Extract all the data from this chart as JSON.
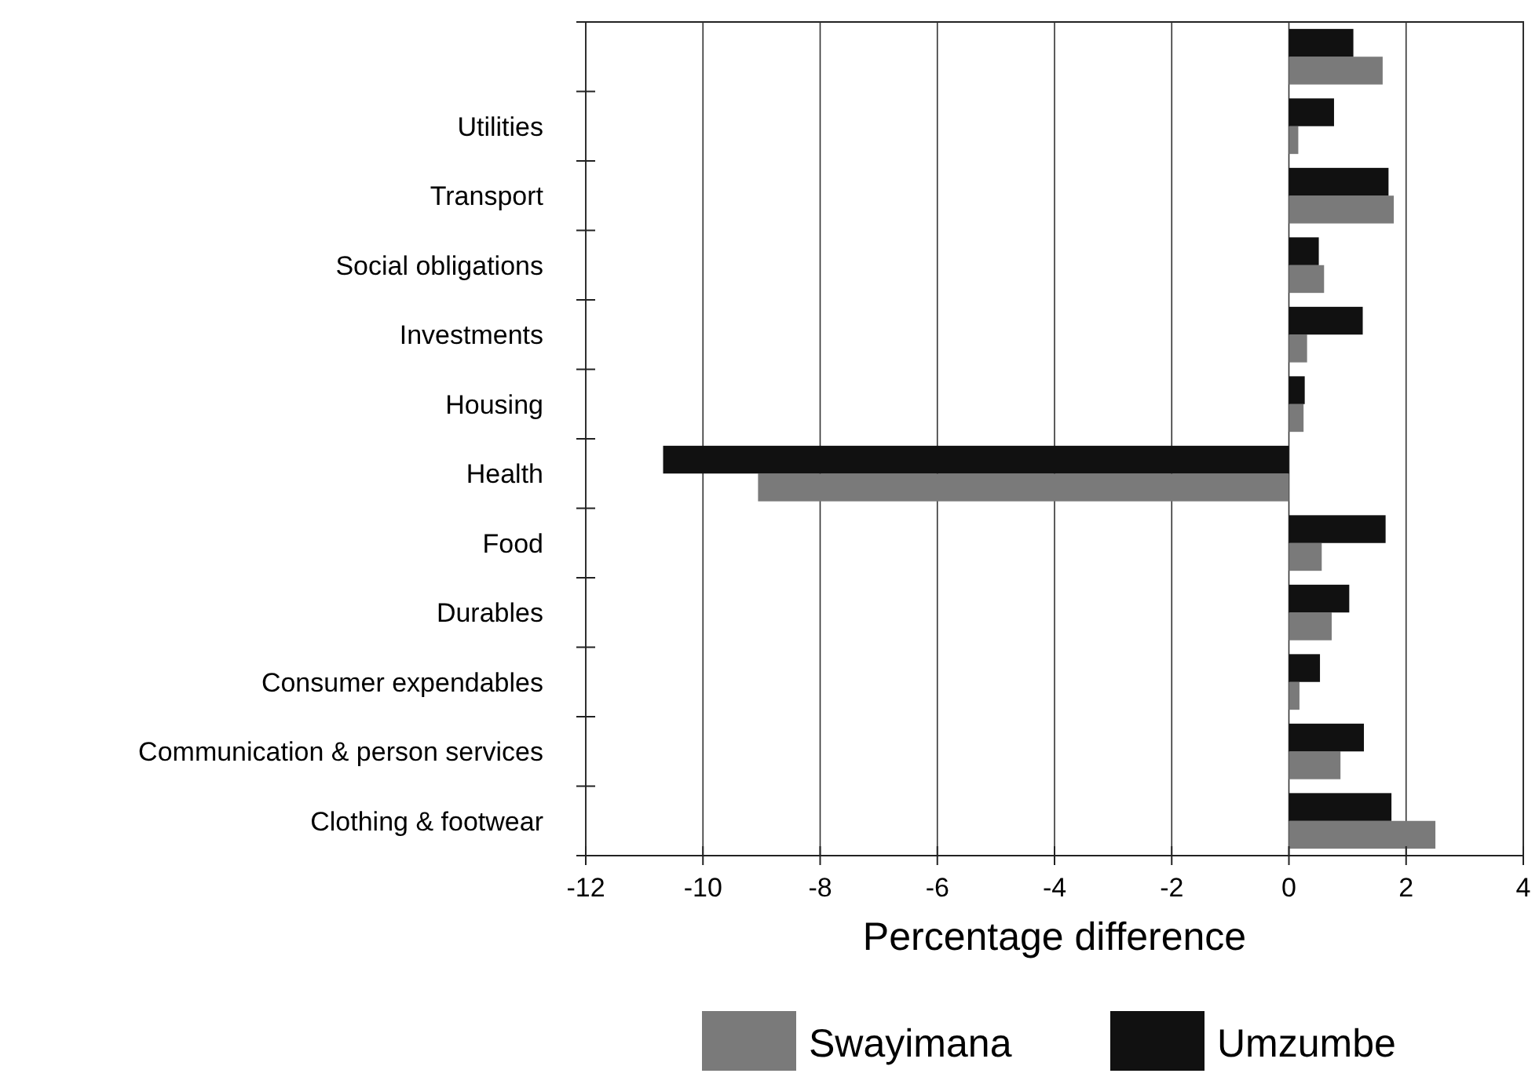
{
  "chart_data": {
    "type": "bar",
    "orientation": "horizontal",
    "xlabel": "Percentage difference",
    "categories": [
      null,
      "Utilities",
      "Transport",
      "Social obligations",
      "Investments",
      "Housing",
      "Health",
      "Food",
      "Durables",
      "Consumer expendables",
      "Communication & person services",
      "Clothing & footwear"
    ],
    "series": [
      {
        "name": "Swayimana",
        "color": "#7a7a7a",
        "values": [
          1.6,
          0.16,
          1.79,
          0.6,
          0.31,
          0.25,
          -9.06,
          0.56,
          0.73,
          0.18,
          0.88,
          2.5
        ]
      },
      {
        "name": "Umzumbe",
        "color": "#111111",
        "values": [
          1.1,
          0.77,
          1.7,
          0.51,
          1.26,
          0.27,
          -10.68,
          1.65,
          1.03,
          0.53,
          1.28,
          1.75
        ]
      }
    ],
    "xlim": [
      -12,
      4
    ],
    "xticks": [
      -12,
      -10,
      -8,
      -6,
      -4,
      -2,
      0,
      2,
      4
    ],
    "grid": "x",
    "legend": "bottom"
  }
}
